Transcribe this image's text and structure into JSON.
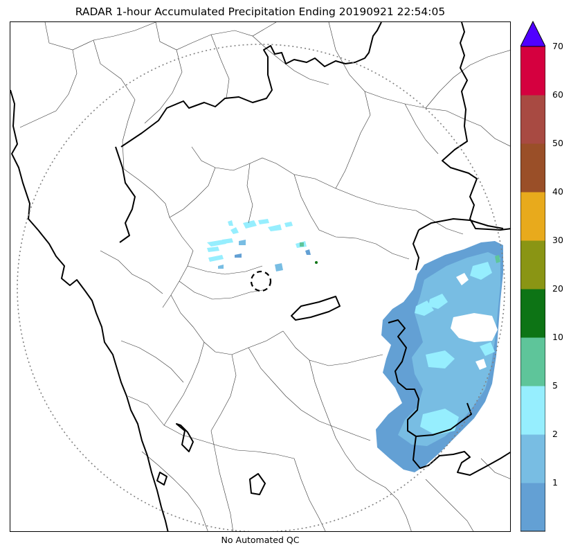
{
  "title": "RADAR 1-hour Accumulated Precipitation Ending 20190921 22:54:05",
  "footer_note": "No Automated QC",
  "colorbar": {
    "extend": "max",
    "extend_color": "#5000ff",
    "bins": [
      {
        "from": 0,
        "to": 1,
        "color": "#63a0d4"
      },
      {
        "from": 1,
        "to": 2,
        "color": "#78bde3"
      },
      {
        "from": 2,
        "to": 5,
        "color": "#96eefe"
      },
      {
        "from": 5,
        "to": 10,
        "color": "#5ec59a"
      },
      {
        "from": 10,
        "to": 20,
        "color": "#0d7415"
      },
      {
        "from": 20,
        "to": 30,
        "color": "#8a9514"
      },
      {
        "from": 30,
        "to": 40,
        "color": "#e8aa1c"
      },
      {
        "from": 40,
        "to": 50,
        "color": "#9a4f28"
      },
      {
        "from": 50,
        "to": 60,
        "color": "#a84a42"
      },
      {
        "from": 60,
        "to": 70,
        "color": "#d5003f"
      }
    ],
    "tick_labels": [
      "1",
      "2",
      "5",
      "10",
      "20",
      "30",
      "40",
      "50",
      "60",
      "70"
    ]
  },
  "colors": {
    "state_border": "#000000",
    "district_border": "#333333",
    "range_ring": "#808080",
    "light_rain": "#63a0d4",
    "moderate_rain": "#78bde3",
    "heavy_rain": "#96eefe",
    "very_heavy_rain": "#5ec59a"
  }
}
